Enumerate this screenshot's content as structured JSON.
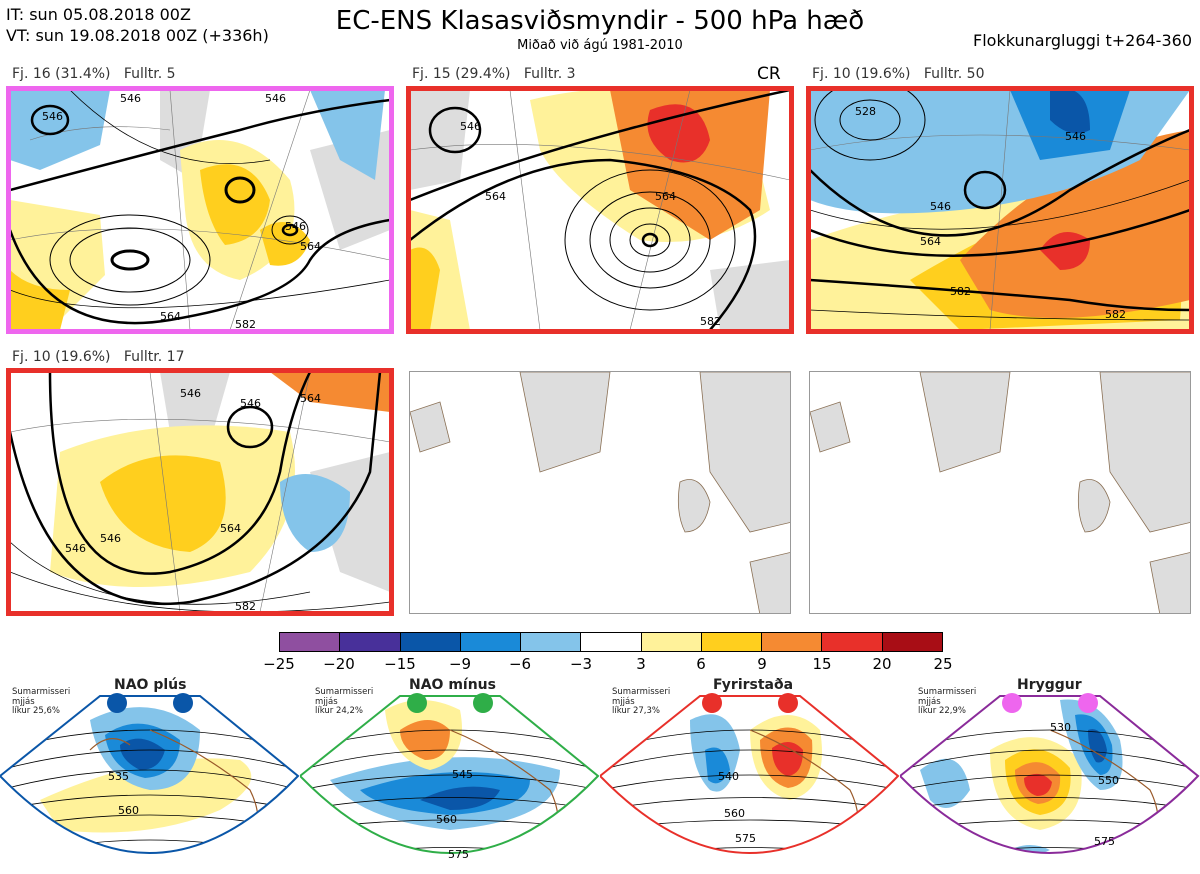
{
  "header": {
    "it_line": "IT: sun 05.08.2018 00Z",
    "vt_line": "VT: sun 19.08.2018 00Z  (+336h)",
    "title": "EC-ENS Klasasviðsmyndir - 500 hPa hæð",
    "subtitle": "Miðað við ágú 1981-2010",
    "window": "Flokkunargluggi t+264-360"
  },
  "panels": [
    {
      "label": "Fj. 16 (31.4%)   Fulltr. 5",
      "frame_color": "#ee66ee",
      "contour_labels": [
        "546",
        "546",
        "546",
        "546",
        "564",
        "564",
        "582"
      ]
    },
    {
      "label": "Fj. 15 (29.4%)   Fulltr. 3",
      "tag": "CR",
      "frame_color": "#e8302a",
      "contour_labels": [
        "546",
        "564",
        "564",
        "582"
      ]
    },
    {
      "label": "Fj. 10 (19.6%)   Fulltr. 50",
      "frame_color": "#e8302a",
      "contour_labels": [
        "528",
        "546",
        "546",
        "564",
        "582",
        "582"
      ]
    },
    {
      "label": "Fj. 10 (19.6%)   Fulltr. 17",
      "frame_color": "#e8302a",
      "contour_labels": [
        "546",
        "546",
        "546",
        "546",
        "564",
        "564",
        "582"
      ]
    }
  ],
  "colorbar": {
    "ticks": [
      "−25",
      "−20",
      "−15",
      "−9",
      "−6",
      "−3",
      "3",
      "6",
      "9",
      "15",
      "20",
      "25"
    ],
    "colors": [
      "#8f4fa0",
      "#48309a",
      "#0a56a8",
      "#1a8ad8",
      "#84c4ea",
      "#ffffff",
      "#fff29a",
      "#ffcf1e",
      "#f58a32",
      "#e8302a",
      "#a80d15"
    ]
  },
  "regimes": [
    {
      "name": "NAO plús",
      "note": "Sumarmisseri\nmjjás\nlíkur 25,6%",
      "color": "#0a56a8",
      "contour_labels": [
        "535",
        "560"
      ]
    },
    {
      "name": "NAO mínus",
      "note": "Sumarmisseri\nmjjás\nlíkur 24,2%",
      "color": "#2fae48",
      "contour_labels": [
        "545",
        "560",
        "575"
      ]
    },
    {
      "name": "Fyrirstaða",
      "note": "Sumarmisseri\nmjjás\nlíkur 27,3%",
      "color": "#e8302a",
      "contour_labels": [
        "540",
        "560",
        "575"
      ]
    },
    {
      "name": "Hryggur",
      "note": "Sumarmisseri\nmjjás\nlíkur 22,9%",
      "color": "#ee66ee",
      "frame_color": "#8a2b9a",
      "contour_labels": [
        "530",
        "550",
        "575"
      ]
    }
  ],
  "chart_data": {
    "type": "heatmap",
    "title": "EC-ENS Klasasviðsmyndir - 500 hPa hæð",
    "subtitle": "Miðað við ágú 1981-2010",
    "color_scale_levels": [
      -25,
      -20,
      -15,
      -9,
      -6,
      -3,
      3,
      6,
      9,
      15,
      20,
      25
    ],
    "clusters": [
      {
        "label": "Fj. 16",
        "percent": 31.4,
        "representative": 5
      },
      {
        "label": "Fj. 15",
        "percent": 29.4,
        "representative": 3
      },
      {
        "label": "Fj. 10",
        "percent": 19.6,
        "representative": 50
      },
      {
        "label": "Fj. 10",
        "percent": 19.6,
        "representative": 17
      }
    ],
    "regimes": [
      {
        "name": "NAO plús",
        "probability": 25.6
      },
      {
        "name": "NAO mínus",
        "probability": 24.2
      },
      {
        "name": "Fyrirstaða",
        "probability": 27.3
      },
      {
        "name": "Hryggur",
        "probability": 22.9
      }
    ]
  }
}
